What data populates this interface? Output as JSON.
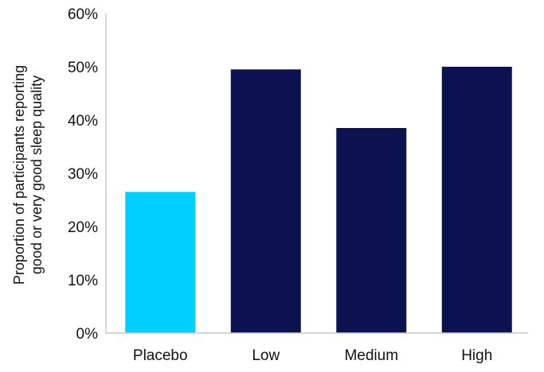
{
  "chart_data": {
    "type": "bar",
    "title": "",
    "xlabel": "",
    "ylabel_lines": [
      "Proportion of participants reporting",
      "good or very good sleep quality"
    ],
    "categories": [
      "Placebo",
      "Low",
      "Medium",
      "High"
    ],
    "values": [
      26.5,
      49.5,
      38.5,
      50.0
    ],
    "bar_colors": [
      "#00cfff",
      "#0c1150",
      "#0c1150",
      "#0c1150"
    ],
    "ylim": [
      0,
      60
    ],
    "y_ticks": [
      0,
      10,
      20,
      30,
      40,
      50,
      60
    ],
    "y_tick_labels": [
      "0%",
      "10%",
      "20%",
      "30%",
      "40%",
      "50%",
      "60%"
    ],
    "grid": false,
    "axis_color": "#c8c8c8"
  }
}
